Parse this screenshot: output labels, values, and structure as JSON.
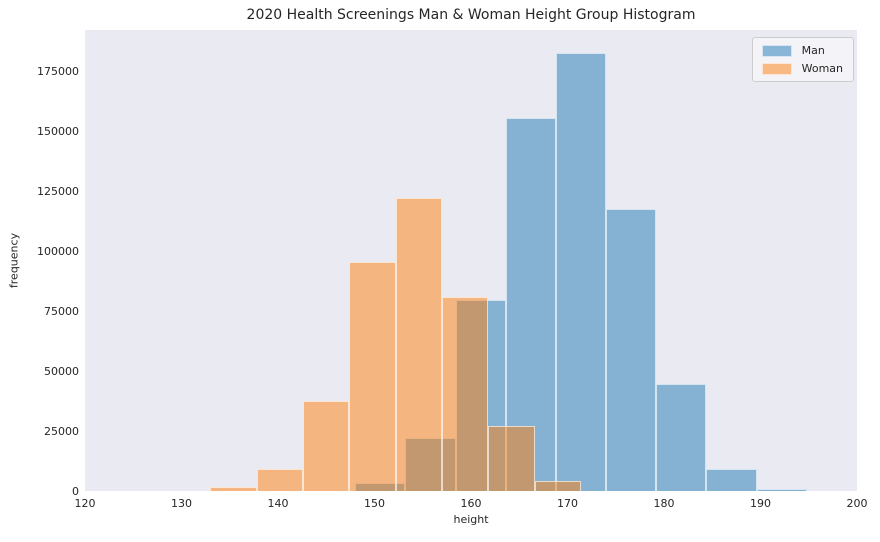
{
  "chart_data": {
    "type": "histogram",
    "title": "2020 Health Screenings Man & Woman Height Group Histogram",
    "xlabel": "height",
    "ylabel": "frequency",
    "xlim": [
      120,
      200
    ],
    "ylim": [
      0,
      192000
    ],
    "xticks": [
      120,
      130,
      140,
      150,
      160,
      170,
      180,
      190,
      200
    ],
    "yticks": [
      0,
      25000,
      50000,
      75000,
      100000,
      125000,
      150000,
      175000
    ],
    "grid": false,
    "legend_position": "upper right",
    "plot_bg_color": "#eaeaf2",
    "figure_bg_color": "#ffffff",
    "series": [
      {
        "name": "Man",
        "base_color": "#1f77b4",
        "fill_rgba": "rgba(31,119,180,0.5)",
        "alpha": 0.5,
        "bin_start": 148.0,
        "bin_width": 5.2,
        "bin_edges": [
          148.0,
          153.2,
          158.4,
          163.6,
          168.8,
          174.0,
          179.2,
          184.4,
          189.6,
          194.8
        ],
        "frequencies": [
          3200,
          22000,
          79500,
          155500,
          182500,
          117500,
          44500,
          9000,
          700
        ]
      },
      {
        "name": "Woman",
        "base_color": "#ff7f0e",
        "fill_rgba": "rgba(255,127,14,0.5)",
        "alpha": 0.5,
        "bin_start": 133.0,
        "bin_width": 4.8,
        "bin_edges": [
          133.0,
          137.8,
          142.6,
          147.4,
          152.2,
          157.0,
          161.8,
          166.6,
          171.4
        ],
        "frequencies": [
          1500,
          9000,
          37500,
          95500,
          122000,
          81000,
          27000,
          4000
        ]
      }
    ]
  }
}
